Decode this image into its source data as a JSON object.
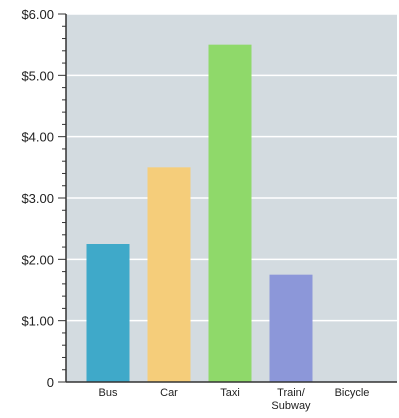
{
  "chart_data": {
    "type": "bar",
    "categories": [
      "Bus",
      "Car",
      "Taxi",
      "Train/\nSubway",
      "Bicycle"
    ],
    "values": [
      2.25,
      3.5,
      5.5,
      1.75,
      0
    ],
    "ylim": [
      0,
      6
    ],
    "yticks": [
      0,
      1,
      2,
      3,
      4,
      5,
      6
    ],
    "ytick_labels": [
      "0",
      "$1.00",
      "$2.00",
      "$3.00",
      "$4.00",
      "$5.00",
      "$6.00"
    ],
    "bar_colors": [
      "#3fa9c9",
      "#f5cd7a",
      "#8fd96a",
      "#8c97d9",
      "#cccccc"
    ],
    "plot_background": "#d3dbe0",
    "grid": true,
    "grid_color": "#ffffff",
    "title": "",
    "xlabel": "",
    "ylabel": ""
  }
}
